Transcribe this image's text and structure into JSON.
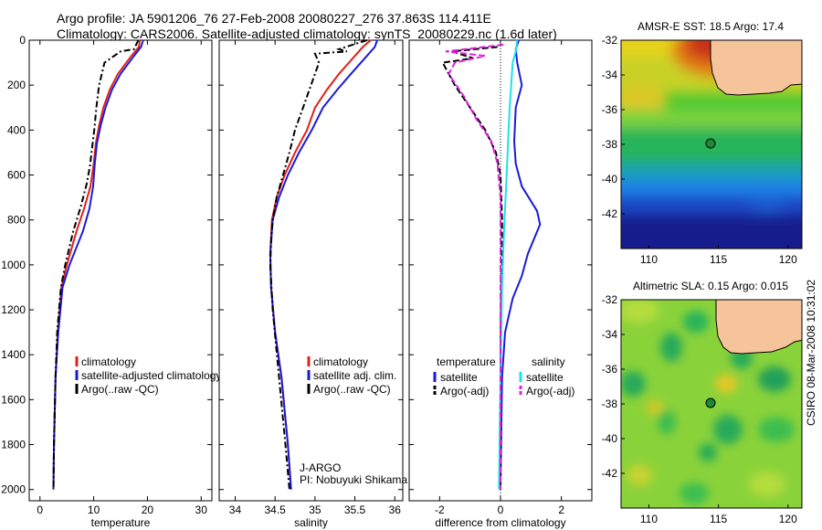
{
  "header": {
    "line1": "Argo profile: JA 5901206_76 27-Feb-2008 20080227_276 37.863S 114.411E",
    "line2": "Climatology: CARS2006. Satellite-adjusted climatology: synTS_20080229.nc (1.6d later)"
  },
  "side_stamp": "CSIRO 08-Mar-2008 10:31:02",
  "colors": {
    "climatology": "#e0201a",
    "satellite": "#1a1ad8",
    "argo": "#000000",
    "argo_adj_salinity": "#e020e0",
    "satellite_salinity": "#20e0e8",
    "land": "#f6c49a"
  },
  "chart_data": [
    {
      "type": "line",
      "id": "temperature",
      "xlabel": "temperature",
      "ylabel": "",
      "xlim": [
        -2,
        32
      ],
      "ylim": [
        2050,
        0
      ],
      "xticks": [
        0,
        10,
        20,
        30
      ],
      "yticks": [
        0,
        200,
        400,
        600,
        800,
        1000,
        1200,
        1400,
        1600,
        1800,
        2000
      ],
      "legend": [
        "climatology",
        "satellite-adjusted climatology",
        "Argo(..raw -QC)"
      ],
      "series": [
        {
          "name": "climatology",
          "color": "#e0201a",
          "dash": "",
          "x": [
            18.6,
            18.4,
            17,
            14.5,
            13,
            11.8,
            11,
            10.4,
            10,
            9.4,
            8.2,
            6.8,
            5,
            4,
            3.3,
            2.9,
            2.6,
            2.5
          ],
          "y": [
            0,
            30,
            70,
            150,
            220,
            300,
            380,
            460,
            550,
            650,
            750,
            850,
            1000,
            1100,
            1300,
            1500,
            1800,
            2000
          ]
        },
        {
          "name": "satellite-adjusted climatology",
          "color": "#1a1ad8",
          "dash": "",
          "x": [
            19.2,
            18.8,
            17.5,
            15,
            13.4,
            12.2,
            11.3,
            10.6,
            10.2,
            9.9,
            9.2,
            8,
            5.5,
            4.2,
            3.4,
            2.9,
            2.6,
            2.5
          ],
          "y": [
            0,
            30,
            70,
            150,
            220,
            300,
            380,
            460,
            550,
            650,
            750,
            850,
            1000,
            1100,
            1300,
            1500,
            1800,
            2000
          ]
        },
        {
          "name": "Argo(..raw -QC)",
          "color": "#000000",
          "dash": "7,3,2,3",
          "x": [
            18.3,
            17.5,
            15,
            12,
            11,
            10.5,
            10.1,
            9.7,
            9.3,
            8.7,
            7.6,
            6.2,
            4.7,
            3.9,
            3.2,
            2.9,
            2.6,
            2.5
          ],
          "y": [
            0,
            40,
            50,
            100,
            200,
            300,
            400,
            480,
            560,
            640,
            740,
            850,
            1000,
            1100,
            1300,
            1500,
            1800,
            2000
          ]
        }
      ]
    },
    {
      "type": "line",
      "id": "salinity",
      "xlabel": "salinity",
      "xlim": [
        33.8,
        36.1
      ],
      "ylim": [
        2050,
        0
      ],
      "xticks": [
        34,
        34.5,
        35,
        35.5,
        36
      ],
      "legend": [
        "climatology",
        "satellite adj. clim.",
        "Argo(..raw -QC)"
      ],
      "annotation": [
        "J-ARGO",
        "PI: Nobuyuki Shikama"
      ],
      "series": [
        {
          "name": "climatology",
          "color": "#e0201a",
          "dash": "",
          "x": [
            35.7,
            35.6,
            35.5,
            35.3,
            35.15,
            35.0,
            34.9,
            34.75,
            34.62,
            34.52,
            34.46,
            34.44,
            34.45,
            34.5,
            34.58,
            34.66,
            34.7
          ],
          "y": [
            0,
            30,
            70,
            150,
            220,
            300,
            400,
            500,
            600,
            700,
            800,
            950,
            1100,
            1300,
            1500,
            1800,
            2000
          ]
        },
        {
          "name": "satellite adj. clim.",
          "color": "#1a1ad8",
          "dash": "",
          "x": [
            35.78,
            35.75,
            35.65,
            35.45,
            35.28,
            35.1,
            34.96,
            34.8,
            34.66,
            34.55,
            34.47,
            34.44,
            34.45,
            34.5,
            34.58,
            34.66,
            34.7
          ],
          "y": [
            0,
            30,
            70,
            150,
            220,
            300,
            400,
            500,
            600,
            700,
            800,
            950,
            1100,
            1300,
            1500,
            1800,
            2000
          ]
        },
        {
          "name": "Argo(..raw -QC)",
          "color": "#000000",
          "dash": "7,3,2,3",
          "x": [
            35.65,
            35.3,
            35.4,
            35.0,
            35.05,
            34.95,
            34.85,
            34.75,
            34.68,
            34.6,
            34.52,
            34.47,
            34.45,
            34.44,
            34.47,
            34.55,
            34.63,
            34.68
          ],
          "y": [
            0,
            40,
            50,
            60,
            100,
            200,
            300,
            400,
            500,
            600,
            700,
            800,
            900,
            1000,
            1200,
            1500,
            1800,
            2000
          ]
        }
      ]
    },
    {
      "type": "line",
      "id": "difference",
      "xlabel": "difference from climatology",
      "xlim": [
        -3,
        3
      ],
      "ylim": [
        2050,
        0
      ],
      "xticks": [
        -2,
        0,
        2
      ],
      "legend_temperature": {
        "heading": "temperature",
        "items": [
          "satellite",
          "Argo(-adj)"
        ]
      },
      "legend_salinity": {
        "heading": "salinity",
        "items": [
          "satellite",
          "Argo(-adj)"
        ]
      },
      "series": [
        {
          "name": "temperature satellite",
          "color": "#1a1ad8",
          "dash": "",
          "x": [
            0.6,
            0.5,
            0.55,
            0.7,
            0.5,
            0.45,
            0.5,
            0.7,
            1.2,
            1.3,
            0.9,
            0.7,
            0.4,
            0.15,
            0.05,
            0.0
          ],
          "y": [
            0,
            40,
            100,
            200,
            300,
            450,
            550,
            650,
            760,
            820,
            950,
            1050,
            1150,
            1300,
            1500,
            2000
          ]
        },
        {
          "name": "temperature Argo(-adj)",
          "color": "#000000",
          "dash": "7,3",
          "x": [
            -0.1,
            -1.6,
            -0.9,
            -1.9,
            -1.5,
            -1.0,
            -0.5,
            -0.15,
            0.0,
            0.05,
            0.05,
            0.0,
            0.0,
            0.0
          ],
          "y": [
            30,
            50,
            80,
            100,
            200,
            300,
            400,
            500,
            600,
            800,
            1000,
            1300,
            1600,
            2000
          ]
        },
        {
          "name": "salinity satellite",
          "color": "#20e0e8",
          "dash": "",
          "x": [
            0.55,
            0.5,
            0.4,
            0.35,
            0.3,
            0.25,
            0.2,
            0.15,
            0.1,
            0.05,
            0.0,
            -0.05
          ],
          "y": [
            0,
            50,
            100,
            200,
            300,
            450,
            600,
            750,
            900,
            1100,
            1500,
            2000
          ]
        },
        {
          "name": "salinity Argo(-adj)",
          "color": "#e020e0",
          "dash": "7,3",
          "x": [
            0.1,
            -1.8,
            -0.5,
            -1.5,
            -1.7,
            -1.2,
            -0.8,
            -0.3,
            -0.1,
            0.0,
            0.0,
            0.0
          ],
          "y": [
            20,
            50,
            70,
            100,
            150,
            250,
            350,
            450,
            550,
            700,
            1000,
            2000
          ]
        }
      ]
    }
  ],
  "maps": [
    {
      "id": "sst",
      "title": "AMSR-E SST: 18.5 Argo: 17.4",
      "xticks": [
        "110",
        "115",
        "120"
      ],
      "yticks": [
        "-32",
        "-34",
        "-36",
        "-38",
        "-40",
        "-42"
      ],
      "lon_range": [
        108,
        121
      ],
      "lat_range": [
        -44,
        -32
      ],
      "float_position": {
        "lon": 114.411,
        "lat": -37.863
      }
    },
    {
      "id": "sla",
      "title": "Altimetric SLA: 0.15 Argo: 0.015",
      "xticks": [
        "110",
        "115",
        "120"
      ],
      "yticks": [
        "-32",
        "-34",
        "-36",
        "-38",
        "-40",
        "-42"
      ],
      "lon_range": [
        108,
        121
      ],
      "lat_range": [
        -44,
        -32
      ],
      "float_position": {
        "lon": 114.411,
        "lat": -37.863
      }
    }
  ]
}
